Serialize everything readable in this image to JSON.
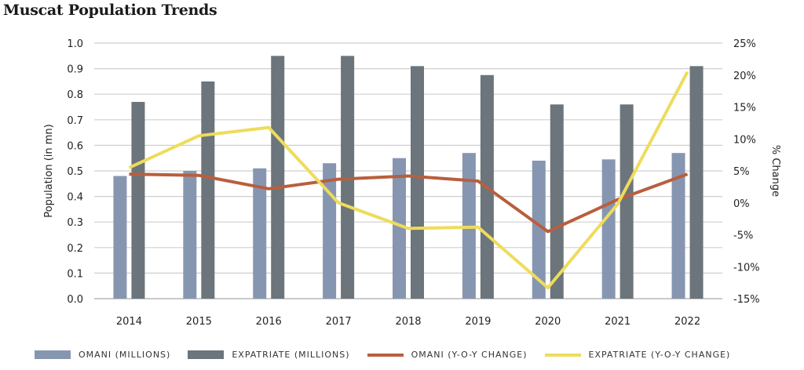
{
  "chart_data": {
    "type": "bar",
    "title": "Muscat Population Trends",
    "categories": [
      "2014",
      "2015",
      "2016",
      "2017",
      "2018",
      "2019",
      "2020",
      "2021",
      "2022"
    ],
    "ylabel": "Population (in mn)",
    "y2label": "% Change",
    "ylim": [
      0,
      1.0
    ],
    "y2lim": [
      -15,
      25
    ],
    "yticks": [
      "0.0",
      "0.1",
      "0.2",
      "0.3",
      "0.4",
      "0.5",
      "0.6",
      "0.7",
      "0.8",
      "0.9",
      "1.0"
    ],
    "y2ticks": [
      "-15%",
      "-10%",
      "-5%",
      "0%",
      "5%",
      "10%",
      "15%",
      "20%",
      "25%"
    ],
    "grid": true,
    "legend_placement": "bottom",
    "series": [
      {
        "name": "OMANI (MILLIONS)",
        "kind": "bar",
        "axis": "left",
        "color": "#8796B0",
        "values": [
          0.48,
          0.5,
          0.51,
          0.53,
          0.55,
          0.57,
          0.54,
          0.545,
          0.57
        ]
      },
      {
        "name": "EXPATRIATE (MILLIONS)",
        "kind": "bar",
        "axis": "left",
        "color": "#6B757B",
        "values": [
          0.77,
          0.85,
          0.95,
          0.95,
          0.91,
          0.875,
          0.76,
          0.76,
          0.91
        ]
      },
      {
        "name": "OMANI (Y-O-Y CHANGE)",
        "kind": "line",
        "axis": "right",
        "color": "#B85F3E",
        "values": [
          4.5,
          4.3,
          2.2,
          3.7,
          4.2,
          3.4,
          -4.5,
          0.5,
          4.5
        ]
      },
      {
        "name": "EXPATRIATE (Y-O-Y CHANGE)",
        "kind": "line",
        "axis": "right",
        "color": "#EEDC5B",
        "values": [
          5.5,
          10.5,
          11.8,
          0.0,
          -4.0,
          -3.8,
          -13.3,
          -0.2,
          20.5
        ]
      }
    ]
  }
}
